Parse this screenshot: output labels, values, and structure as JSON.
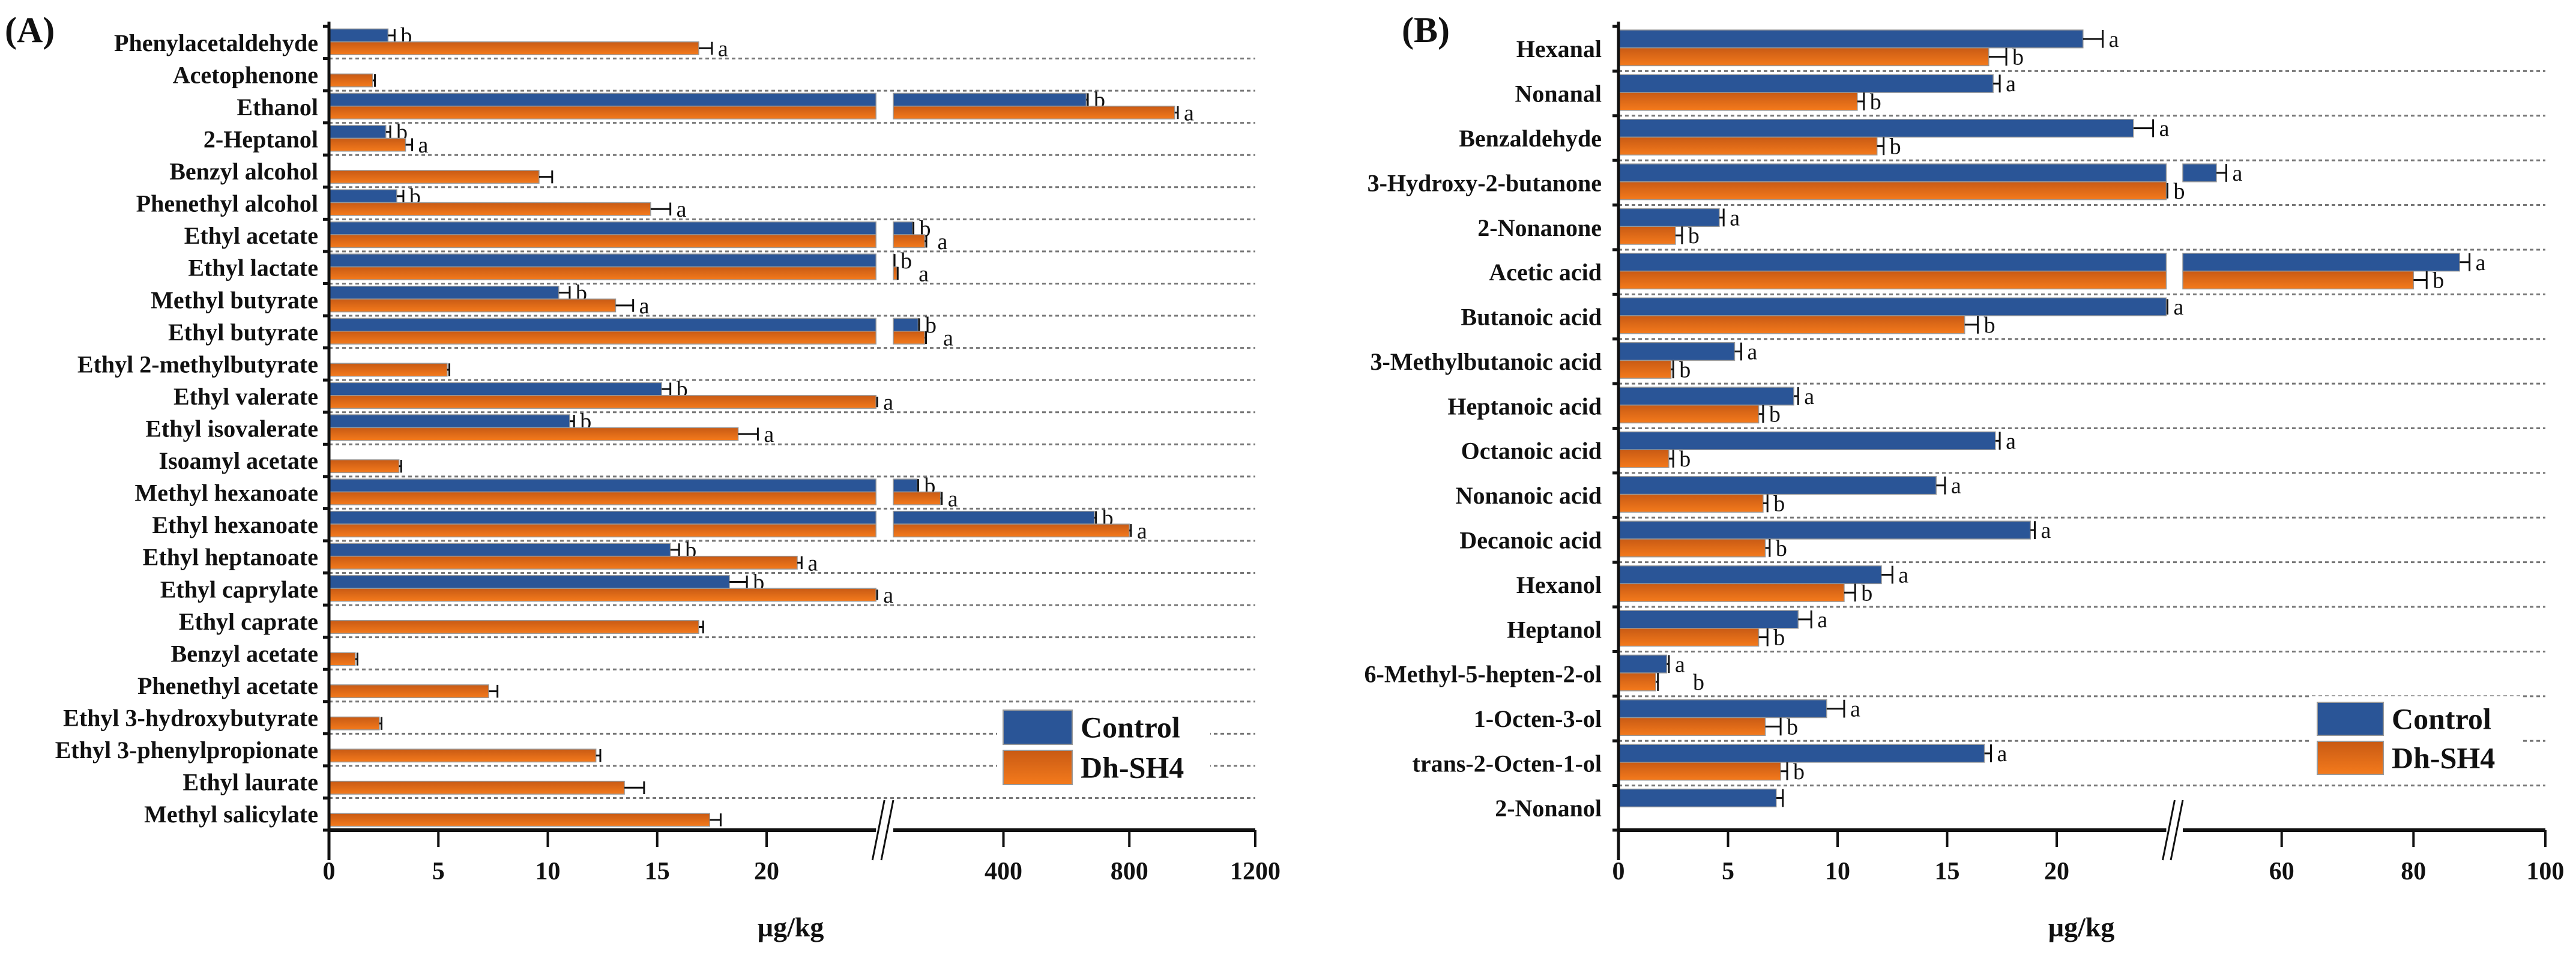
{
  "colors": {
    "control": "#2a5597",
    "dh_top": "#c85a14",
    "dh_bottom": "#f47a1c"
  },
  "chart_data": [
    {
      "type": "bar",
      "orientation": "horizontal",
      "panel_label": "(A)",
      "xlabel": "µg/kg",
      "axis_break": [
        25,
        50
      ],
      "xlim": [
        0,
        1200
      ],
      "x_ticks": [
        0,
        5,
        10,
        15,
        20,
        400,
        800,
        1200
      ],
      "x_tick_labels": [
        "0",
        "5",
        "10",
        "15",
        "20",
        "400",
        "800",
        "1200"
      ],
      "legend": {
        "position": "bottom-right",
        "entries": [
          "Control",
          "Dh-SH4"
        ]
      },
      "categories": [
        "Phenylacetaldehyde",
        "Acetophenone",
        "Ethanol",
        "2-Heptanol",
        "Benzyl alcohol",
        "Phenethyl alcohol",
        "Ethyl acetate",
        "Ethyl lactate",
        "Methyl butyrate",
        "Ethyl butyrate",
        "Ethyl 2-methylbutyrate",
        "Ethyl valerate",
        "Ethyl isovalerate",
        "Isoamyl acetate",
        "Methyl hexanoate",
        "Ethyl hexanoate",
        "Ethyl heptanoate",
        "Ethyl caprylate",
        "Ethyl caprate",
        "Benzyl acetate",
        "Phenethyl acetate",
        "Ethyl 3-hydroxybutyrate",
        "Ethyl 3-phenylpropionate",
        "Ethyl laurate",
        "Methyl salicylate"
      ],
      "series": [
        {
          "name": "Control",
          "values": [
            2.7,
            null,
            663,
            2.6,
            null,
            3.1,
            111,
            52,
            10.5,
            129,
            null,
            15.2,
            11.0,
            null,
            126,
            689,
            15.6,
            18.3,
            null,
            null,
            null,
            null,
            null,
            null,
            null
          ],
          "errors": [
            0.3,
            null,
            5,
            0.2,
            null,
            0.3,
            3,
            2,
            0.5,
            3,
            null,
            0.4,
            0.2,
            null,
            3,
            5,
            0.4,
            0.8,
            null,
            null,
            null,
            null,
            null,
            null,
            null
          ],
          "letters": [
            "b",
            "",
            "b",
            "b",
            "",
            "b",
            "b",
            "b",
            "b",
            "b",
            "",
            "b",
            "b",
            "",
            "b",
            "b",
            "b",
            "b",
            "",
            "",
            "",
            "",
            "",
            "",
            ""
          ]
        },
        {
          "name": "Dh-SH4",
          "values": [
            16.9,
            2.0,
            944,
            3.5,
            9.6,
            14.7,
            150,
            62,
            13.1,
            150,
            5.4,
            25,
            18.7,
            3.2,
            200,
            800,
            21.4,
            25,
            16.9,
            1.2,
            7.3,
            2.3,
            12.2,
            13.5,
            17.4
          ],
          "errors": [
            0.6,
            0.1,
            10,
            0.3,
            0.6,
            0.9,
            5,
            2,
            0.8,
            4,
            0.1,
            0,
            0.9,
            0.1,
            4,
            5,
            0.2,
            0,
            0.2,
            0.1,
            0.4,
            0.1,
            0.2,
            0.9,
            0.5
          ],
          "letters": [
            "a",
            "",
            "a",
            "a",
            "",
            "a",
            "a",
            "a",
            "a",
            "a",
            "",
            "a",
            "a",
            "",
            "a",
            "a",
            "a",
            "a",
            "",
            "",
            "",
            "",
            "",
            "",
            ""
          ]
        }
      ]
    },
    {
      "type": "bar",
      "orientation": "horizontal",
      "panel_label": "(B)",
      "xlabel": "µg/kg",
      "axis_break": [
        25,
        45
      ],
      "xlim": [
        0,
        100
      ],
      "x_ticks": [
        0,
        5,
        10,
        15,
        20,
        60,
        80,
        100
      ],
      "x_tick_labels": [
        "0",
        "5",
        "10",
        "15",
        "20",
        "60",
        "80",
        "100"
      ],
      "legend": {
        "position": "bottom-right",
        "entries": [
          "Control",
          "Dh-SH4"
        ]
      },
      "categories": [
        "Hexanal",
        "Nonanal",
        "Benzaldehyde",
        "3-Hydroxy-2-butanone",
        "2-Nonanone",
        "Acetic acid",
        "Butanoic acid",
        "3-Methylbutanoic acid",
        "Heptanoic acid",
        "Octanoic acid",
        "Nonanoic acid",
        "Decanoic acid",
        "Hexanol",
        "Heptanol",
        "6-Methyl-5-hepten-2-ol",
        "1-Octen-3-ol",
        "trans-2-Octen-1-ol",
        "2-Nonanol"
      ],
      "series": [
        {
          "name": "Control",
          "values": [
            21.2,
            17.1,
            23.5,
            50.1,
            4.6,
            87,
            25,
            5.3,
            8.0,
            17.2,
            14.5,
            18.8,
            12.0,
            8.2,
            2.2,
            9.5,
            16.7,
            7.2
          ],
          "errors": [
            0.9,
            0.3,
            0.9,
            1.5,
            0.2,
            1.5,
            0,
            0.3,
            0.2,
            0.2,
            0.4,
            0.2,
            0.5,
            0.6,
            0.1,
            0.8,
            0.3,
            0.3
          ],
          "letters": [
            "a",
            "a",
            "a",
            "a",
            "a",
            "a",
            "a",
            "a",
            "a",
            "a",
            "a",
            "a",
            "a",
            "a",
            "a",
            "a",
            "a",
            ""
          ]
        },
        {
          "name": "Dh-SH4",
          "values": [
            16.9,
            10.9,
            11.8,
            25,
            2.6,
            80,
            15.8,
            2.4,
            6.4,
            2.3,
            6.6,
            6.7,
            10.3,
            6.4,
            1.7,
            6.7,
            7.4,
            null
          ],
          "errors": [
            0.8,
            0.3,
            0.3,
            0,
            0.3,
            2,
            0.6,
            0.1,
            0.2,
            0.2,
            0.2,
            0.2,
            0.5,
            0.4,
            0.1,
            0.7,
            0.3,
            null
          ],
          "letters": [
            "b",
            "b",
            "b",
            "b",
            "b",
            "b",
            "b",
            "b",
            "b",
            "b",
            "b",
            "b",
            "b",
            "b",
            "b",
            "b",
            "b",
            ""
          ]
        }
      ]
    }
  ]
}
